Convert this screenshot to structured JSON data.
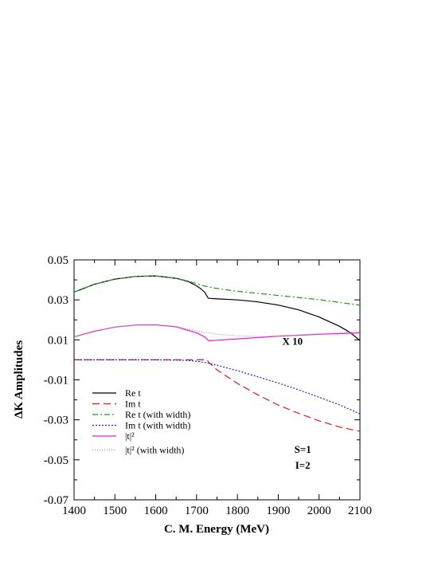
{
  "chart_data": {
    "type": "line",
    "xlabel": "C. M. Energy (MeV)",
    "ylabel": "ΔK Amplitudes",
    "xlim": [
      1400,
      2100
    ],
    "ylim": [
      -0.07,
      0.05
    ],
    "x_ticks": [
      1400,
      1500,
      1600,
      1700,
      1800,
      1900,
      2000,
      2100
    ],
    "y_ticks": [
      -0.07,
      -0.05,
      -0.03,
      -0.01,
      0.01,
      0.03,
      0.05
    ],
    "grid": false,
    "legend_position": "bottom-left",
    "annotations": [
      {
        "text": "X 10",
        "x": 1935,
        "y": 0.0075
      },
      {
        "text": "S=1",
        "x": 1960,
        "y": -0.0465
      },
      {
        "text": "I=2",
        "x": 1960,
        "y": -0.0545
      }
    ],
    "series": [
      {
        "name": "Re t",
        "color": "#000000",
        "dash": "",
        "x": [
          1400,
          1450,
          1500,
          1550,
          1600,
          1650,
          1680,
          1700,
          1710,
          1720,
          1725,
          1728,
          1730,
          1750,
          1800,
          1850,
          1900,
          1950,
          2000,
          2050,
          2075,
          2100
        ],
        "y": [
          0.0339,
          0.0378,
          0.0404,
          0.0417,
          0.042,
          0.0408,
          0.0391,
          0.037,
          0.0356,
          0.0338,
          0.032,
          0.031,
          0.0308,
          0.0305,
          0.03,
          0.029,
          0.0274,
          0.025,
          0.0214,
          0.0168,
          0.0138,
          0.0097
        ]
      },
      {
        "name": "Im t",
        "color": "#e8161b",
        "dash": "9,5",
        "x": [
          1400,
          1500,
          1600,
          1680,
          1710,
          1725,
          1730,
          1750,
          1800,
          1850,
          1900,
          1950,
          2000,
          2050,
          2100
        ],
        "y": [
          0.0,
          0.0,
          0.0,
          0.0,
          0.0,
          0.0,
          -0.0012,
          -0.005,
          -0.0118,
          -0.0175,
          -0.0226,
          -0.0268,
          -0.0305,
          -0.0336,
          -0.0357
        ]
      },
      {
        "name": "Re t (with width)",
        "color": "#1a9b1a",
        "dash": "7,3,2,3",
        "x": [
          1400,
          1450,
          1500,
          1550,
          1600,
          1650,
          1680,
          1700,
          1720,
          1750,
          1800,
          1900,
          2000,
          2100
        ],
        "y": [
          0.0339,
          0.0378,
          0.0404,
          0.0417,
          0.042,
          0.0408,
          0.0394,
          0.0381,
          0.0369,
          0.0357,
          0.0343,
          0.0322,
          0.0301,
          0.0273
        ]
      },
      {
        "name": "Im t (with width)",
        "color": "#1b22d8",
        "dash": "2,2",
        "x": [
          1400,
          1500,
          1600,
          1650,
          1680,
          1700,
          1720,
          1750,
          1800,
          1850,
          1900,
          1950,
          2000,
          2050,
          2100
        ],
        "y": [
          0.0,
          0.0,
          0.0,
          -0.0001,
          -0.0003,
          -0.0007,
          -0.0013,
          -0.0027,
          -0.0054,
          -0.0085,
          -0.0116,
          -0.015,
          -0.0187,
          -0.0225,
          -0.027
        ]
      },
      {
        "name": "|t|²",
        "color": "#ee1ecd",
        "dash": "",
        "x": [
          1400,
          1450,
          1500,
          1550,
          1600,
          1650,
          1700,
          1720,
          1730,
          1750,
          1800,
          1900,
          2000,
          2100
        ],
        "y": [
          0.0115,
          0.0143,
          0.0164,
          0.0174,
          0.0175,
          0.0165,
          0.0135,
          0.0115,
          0.0095,
          0.0098,
          0.0105,
          0.0118,
          0.0128,
          0.0135
        ]
      },
      {
        "name": "|t|² (with width)",
        "color": "#9a9a9a",
        "dash": "1,2",
        "x": [
          1400,
          1450,
          1500,
          1550,
          1600,
          1650,
          1700,
          1720,
          1750,
          1800,
          1850,
          1900,
          2000,
          2100
        ],
        "y": [
          0.0115,
          0.0143,
          0.0164,
          0.0174,
          0.0175,
          0.0165,
          0.0145,
          0.0138,
          0.0128,
          0.012,
          0.0117,
          0.012,
          0.013,
          0.0142
        ]
      }
    ]
  }
}
